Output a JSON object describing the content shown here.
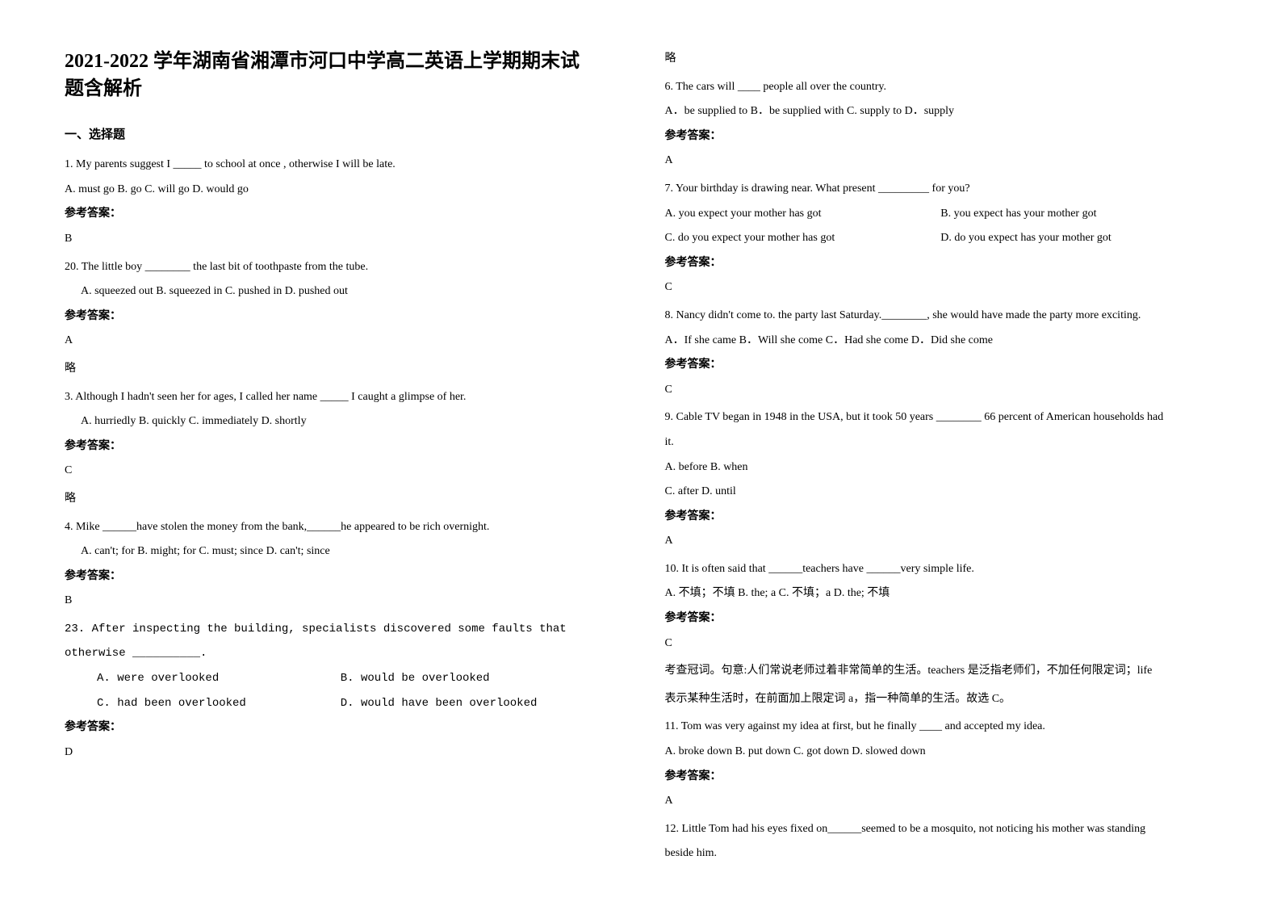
{
  "left": {
    "title_line1": "2021-2022 学年湖南省湘潭市河口中学高二英语上学期期末试",
    "title_line2": "题含解析",
    "section_header": "一、选择题",
    "q1_text": "1. My parents suggest I _____ to school at once , otherwise I will be late.",
    "q1_options": "A. must go    B. go    C. will go    D. would go",
    "q1_answer_label": "参考答案：",
    "q1_answer": "B",
    "q2_text": "20. The little boy ________ the last bit of toothpaste from the tube.",
    "q2_options": "A. squeezed out    B. squeezed in    C. pushed in    D. pushed out",
    "q2_answer_label": "参考答案：",
    "q2_answer": "A",
    "q2_note": "略",
    "q3_text": "3. Although I hadn't seen her for ages, I called her name _____ I caught a glimpse of her.",
    "q3_options": "A. hurriedly    B. quickly    C. immediately    D. shortly",
    "q3_answer_label": "参考答案：",
    "q3_answer": "C",
    "q3_note": "略",
    "q4_text": "4. Mike ______have stolen the money from the bank,______he appeared to be rich overnight.",
    "q4_options": "A. can't; for    B. might; for    C. must; since    D. can't; since",
    "q4_answer_label": "参考答案：",
    "q4_answer": "B",
    "q5_text_l1": "23. After inspecting the building, specialists discovered some faults that",
    "q5_text_l2": "otherwise __________.",
    "q5_opt_a": "A. were overlooked",
    "q5_opt_b": "B. would be overlooked",
    "q5_opt_c": "C. had been overlooked",
    "q5_opt_d": "D. would have been overlooked",
    "q5_answer_label": "参考答案：",
    "q5_answer": "D"
  },
  "right": {
    "note_top": "略",
    "q6_text": "6. The cars will ____ people all over the country.",
    "q6_options": "A．be supplied to   B．be supplied with   C. supply to   D．supply",
    "q6_answer_label": "参考答案：",
    "q6_answer": "A",
    "q7_text": "7. Your birthday is drawing near. What present _________ for you?",
    "q7_opt_a": "  A. you expect your mother has got",
    "q7_opt_b": "B. you expect has your mother got",
    "q7_opt_c": "  C. do you expect your mother has got",
    "q7_opt_d": "D. do you expect has your mother got",
    "q7_answer_label": "参考答案：",
    "q7_answer": "C",
    "q8_text": "8. Nancy didn't come to. the party last Saturday.________, she would have made the party more   exciting.",
    "q8_options": "A．If she came   B．Will she come   C．Had she come   D．Did she come",
    "q8_answer_label": "参考答案：",
    "q8_answer": "C",
    "q9_text_l1": "9. Cable TV began in 1948 in the USA, but it took 50 years ________ 66 percent of American households had",
    "q9_text_l2": "it.",
    "q9_options_l1": "A. before   B. when",
    "q9_options_l2": "C. after   D. until",
    "q9_answer_label": "参考答案：",
    "q9_answer": "A",
    "q10_text": "10. It is often said that ______teachers have ______very simple life.",
    "q10_options": "A. 不填；不填        B. the; a   C. 不填；a   D. the; 不填",
    "q10_answer_label": "参考答案：",
    "q10_answer": "C",
    "q10_explanation_l1": "考查冠词。句意:人们常说老师过着非常简单的生活。teachers 是泛指老师们，不加任何限定词；life",
    "q10_explanation_l2": "表示某种生活时，在前面加上限定词 a，指一种简单的生活。故选 C。",
    "q11_text": "11. Tom was very against my idea at first, but he finally ____ and accepted my idea.",
    "q11_options": "A. broke down    B. put down C. got down   D. slowed down",
    "q11_answer_label": "参考答案：",
    "q11_answer": "A",
    "q12_text_l1": "12. Little Tom had his eyes fixed on______seemed to be a mosquito, not noticing his mother was standing",
    "q12_text_l2": "beside him."
  }
}
